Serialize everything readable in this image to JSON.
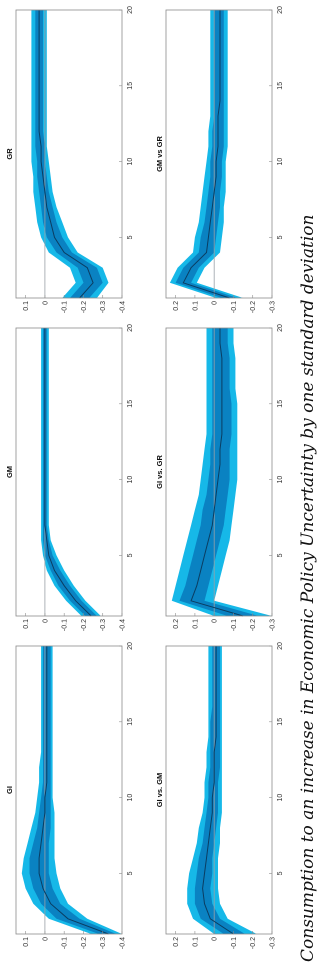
{
  "caption": "Consumption to an increase in Economic Policy Uncertainty by one standard deviation",
  "colors": {
    "outer_band": "#16b8e8",
    "inner_band": "#0a82c2",
    "median": "#0a3d62",
    "zero_line": "#9aa0a6",
    "frame": "#8c8c8c"
  },
  "chart_data": [
    {
      "type": "area",
      "title": "GI",
      "x": [
        1,
        2,
        3,
        4,
        5,
        6,
        7,
        8,
        9,
        10,
        11,
        12,
        13,
        14,
        15,
        16,
        17,
        18,
        19,
        20
      ],
      "series_median": [
        -0.33,
        -0.12,
        -0.03,
        0.01,
        0.03,
        0.03,
        0.02,
        0.01,
        0,
        0,
        -0.01,
        -0.01,
        -0.01,
        -0.01,
        -0.01,
        -0.01,
        -0.01,
        -0.01,
        -0.01,
        -0.01
      ],
      "band68_lower": [
        -0.37,
        -0.18,
        -0.08,
        -0.04,
        -0.02,
        -0.02,
        -0.02,
        -0.03,
        -0.03,
        -0.03,
        -0.03,
        -0.03,
        -0.03,
        -0.03,
        -0.03,
        -0.03,
        -0.03,
        -0.03,
        -0.03,
        -0.03
      ],
      "band68_upper": [
        -0.28,
        -0.06,
        0.02,
        0.06,
        0.08,
        0.08,
        0.06,
        0.04,
        0.03,
        0.02,
        0.01,
        0.01,
        0.01,
        0.01,
        0.01,
        0.01,
        0.01,
        0.01,
        0.01,
        0.01
      ],
      "band90_lower": [
        -0.4,
        -0.22,
        -0.12,
        -0.08,
        -0.06,
        -0.05,
        -0.05,
        -0.05,
        -0.05,
        -0.04,
        -0.04,
        -0.04,
        -0.04,
        -0.04,
        -0.04,
        -0.04,
        -0.04,
        -0.04,
        -0.04,
        -0.04
      ],
      "band90_upper": [
        -0.24,
        -0.02,
        0.06,
        0.1,
        0.12,
        0.11,
        0.09,
        0.07,
        0.05,
        0.04,
        0.03,
        0.03,
        0.02,
        0.02,
        0.02,
        0.02,
        0.02,
        0.02,
        0.02,
        0.02
      ],
      "xlim": [
        1,
        20
      ],
      "ylim": [
        -0.4,
        0.15
      ],
      "xticks": [
        5,
        10,
        15,
        20
      ],
      "xtick_labels": [
        "5",
        "10",
        "15",
        "20"
      ],
      "yticks": [
        -0.4,
        -0.3,
        -0.2,
        -0.1,
        0,
        0.1
      ],
      "ytick_labels": [
        "-0.4",
        "-0.3",
        "-0.2",
        "-0.1",
        "0",
        "0.1"
      ]
    },
    {
      "type": "area",
      "title": "GM",
      "x": [
        1,
        2,
        3,
        4,
        5,
        6,
        7,
        8,
        9,
        10,
        11,
        12,
        13,
        14,
        15,
        16,
        17,
        18,
        19,
        20
      ],
      "series_median": [
        -0.24,
        -0.16,
        -0.1,
        -0.05,
        -0.02,
        -0.01,
        0,
        0,
        0,
        0,
        0,
        0,
        0,
        0,
        0,
        0,
        0,
        0,
        0,
        0
      ],
      "band68_lower": [
        -0.27,
        -0.19,
        -0.13,
        -0.08,
        -0.04,
        -0.02,
        -0.01,
        -0.01,
        -0.01,
        -0.01,
        -0.01,
        -0.01,
        -0.01,
        -0.01,
        -0.01,
        -0.01,
        -0.01,
        -0.01,
        -0.01,
        -0.01
      ],
      "band68_upper": [
        -0.21,
        -0.13,
        -0.07,
        -0.03,
        0,
        0.01,
        0.01,
        0.01,
        0.01,
        0.01,
        0.01,
        0.01,
        0.01,
        0.01,
        0.01,
        0.01,
        0.01,
        0.01,
        0.01,
        0.01
      ],
      "band90_lower": [
        -0.29,
        -0.21,
        -0.15,
        -0.1,
        -0.06,
        -0.03,
        -0.02,
        -0.02,
        -0.02,
        -0.02,
        -0.02,
        -0.02,
        -0.02,
        -0.02,
        -0.02,
        -0.02,
        -0.02,
        -0.02,
        -0.02,
        -0.02
      ],
      "band90_upper": [
        -0.19,
        -0.11,
        -0.05,
        -0.01,
        0.01,
        0.02,
        0.02,
        0.02,
        0.02,
        0.02,
        0.02,
        0.02,
        0.02,
        0.02,
        0.02,
        0.02,
        0.02,
        0.02,
        0.02,
        0.02
      ],
      "xlim": [
        1,
        20
      ],
      "ylim": [
        -0.4,
        0.15
      ],
      "xticks": [
        5,
        10,
        15,
        20
      ],
      "xtick_labels": [
        "5",
        "10",
        "15",
        "20"
      ],
      "yticks": [
        -0.4,
        -0.3,
        -0.2,
        -0.1,
        0,
        0.1
      ],
      "ytick_labels": [
        "-0.4",
        "-0.3",
        "-0.2",
        "-0.1",
        "0",
        "0.1"
      ]
    },
    {
      "type": "area",
      "title": "GR",
      "x": [
        1,
        2,
        3,
        4,
        5,
        6,
        7,
        8,
        9,
        10,
        11,
        12,
        13,
        14,
        15,
        16,
        17,
        18,
        19,
        20
      ],
      "series_median": [
        -0.18,
        -0.25,
        -0.22,
        -0.1,
        -0.05,
        -0.03,
        -0.01,
        0,
        0.01,
        0.02,
        0.02,
        0.03,
        0.03,
        0.03,
        0.03,
        0.03,
        0.03,
        0.03,
        0.03,
        0.03
      ],
      "band68_lower": [
        -0.23,
        -0.3,
        -0.27,
        -0.14,
        -0.09,
        -0.06,
        -0.04,
        -0.02,
        -0.01,
        0,
        0,
        0.01,
        0.01,
        0.01,
        0.01,
        0.01,
        0.01,
        0.01,
        0.01,
        0.01
      ],
      "band68_upper": [
        -0.13,
        -0.2,
        -0.17,
        -0.06,
        -0.01,
        0.01,
        0.02,
        0.03,
        0.04,
        0.04,
        0.05,
        0.05,
        0.05,
        0.05,
        0.05,
        0.05,
        0.05,
        0.05,
        0.05,
        0.05
      ],
      "band90_lower": [
        -0.27,
        -0.33,
        -0.3,
        -0.17,
        -0.12,
        -0.09,
        -0.06,
        -0.04,
        -0.03,
        -0.02,
        -0.01,
        -0.01,
        -0.01,
        -0.01,
        -0.01,
        -0.01,
        -0.01,
        -0.01,
        -0.01,
        -0.01
      ],
      "band90_upper": [
        -0.09,
        -0.16,
        -0.13,
        -0.02,
        0.02,
        0.04,
        0.05,
        0.06,
        0.06,
        0.07,
        0.07,
        0.07,
        0.07,
        0.07,
        0.07,
        0.07,
        0.07,
        0.07,
        0.07,
        0.07
      ],
      "xlim": [
        1,
        20
      ],
      "ylim": [
        -0.4,
        0.15
      ],
      "xticks": [
        5,
        10,
        15,
        20
      ],
      "xtick_labels": [
        "5",
        "10",
        "15",
        "20"
      ],
      "yticks": [
        -0.4,
        -0.3,
        -0.2,
        -0.1,
        0,
        0.1
      ],
      "ytick_labels": [
        "-0.4",
        "-0.3",
        "-0.2",
        "-0.1",
        "0",
        "0.1"
      ]
    },
    {
      "type": "area",
      "title": "GI vs. GM",
      "x": [
        1,
        2,
        3,
        4,
        5,
        6,
        7,
        8,
        9,
        10,
        11,
        12,
        13,
        14,
        15,
        16,
        17,
        18,
        19,
        20
      ],
      "series_median": [
        -0.1,
        0.02,
        0.05,
        0.06,
        0.05,
        0.04,
        0.03,
        0.02,
        0.01,
        0.01,
        0,
        0,
        0,
        -0.01,
        -0.01,
        -0.01,
        -0.01,
        -0.01,
        -0.01,
        -0.01
      ],
      "band68_lower": [
        -0.16,
        -0.03,
        0.01,
        0.02,
        0.01,
        0.01,
        0,
        -0.01,
        -0.02,
        -0.02,
        -0.02,
        -0.03,
        -0.03,
        -0.03,
        -0.03,
        -0.03,
        -0.03,
        -0.03,
        -0.03,
        -0.03
      ],
      "band68_upper": [
        -0.05,
        0.07,
        0.1,
        0.1,
        0.09,
        0.08,
        0.06,
        0.05,
        0.04,
        0.03,
        0.03,
        0.02,
        0.02,
        0.02,
        0.02,
        0.01,
        0.01,
        0.01,
        0.01,
        0.01
      ],
      "band90_lower": [
        -0.22,
        -0.07,
        -0.03,
        -0.02,
        -0.02,
        -0.02,
        -0.03,
        -0.03,
        -0.04,
        -0.04,
        -0.04,
        -0.04,
        -0.04,
        -0.04,
        -0.04,
        -0.04,
        -0.04,
        -0.04,
        -0.04,
        -0.04
      ],
      "band90_upper": [
        0,
        0.11,
        0.14,
        0.14,
        0.13,
        0.11,
        0.09,
        0.08,
        0.06,
        0.05,
        0.05,
        0.04,
        0.04,
        0.03,
        0.03,
        0.03,
        0.03,
        0.03,
        0.03,
        0.03
      ],
      "xlim": [
        1,
        20
      ],
      "ylim": [
        -0.3,
        0.25
      ],
      "xticks": [
        5,
        10,
        15,
        20
      ],
      "xtick_labels": [
        "5",
        "10",
        "15",
        "20"
      ],
      "yticks": [
        -0.3,
        -0.2,
        -0.1,
        0,
        0.1,
        0.2
      ],
      "ytick_labels": [
        "-0.3",
        "-0.2",
        "-0.1",
        "0",
        "0.1",
        "0.2"
      ]
    },
    {
      "type": "area",
      "title": "GI vs. GR",
      "x": [
        1,
        2,
        3,
        4,
        5,
        6,
        7,
        8,
        9,
        10,
        11,
        12,
        13,
        14,
        15,
        16,
        17,
        18,
        19,
        20
      ],
      "series_median": [
        -0.15,
        0.12,
        0.09,
        0.07,
        0.05,
        0.03,
        0.01,
        0,
        -0.01,
        -0.02,
        -0.03,
        -0.03,
        -0.04,
        -0.04,
        -0.04,
        -0.04,
        -0.04,
        -0.04,
        -0.03,
        -0.03
      ],
      "band68_lower": [
        -0.23,
        0.05,
        0.03,
        0.01,
        -0.01,
        -0.03,
        -0.05,
        -0.06,
        -0.07,
        -0.08,
        -0.08,
        -0.08,
        -0.09,
        -0.09,
        -0.09,
        -0.08,
        -0.08,
        -0.08,
        -0.07,
        -0.07
      ],
      "band68_upper": [
        -0.07,
        0.18,
        0.15,
        0.13,
        0.11,
        0.09,
        0.07,
        0.06,
        0.04,
        0.03,
        0.02,
        0.02,
        0.01,
        0.01,
        0.01,
        0.01,
        0.01,
        0.01,
        0.01,
        0.01
      ],
      "band90_lower": [
        -0.3,
        0,
        -0.02,
        -0.04,
        -0.06,
        -0.08,
        -0.09,
        -0.1,
        -0.11,
        -0.12,
        -0.12,
        -0.12,
        -0.12,
        -0.12,
        -0.12,
        -0.11,
        -0.11,
        -0.11,
        -0.1,
        -0.1
      ],
      "band90_upper": [
        0,
        0.22,
        0.2,
        0.18,
        0.16,
        0.14,
        0.12,
        0.1,
        0.08,
        0.07,
        0.06,
        0.05,
        0.04,
        0.04,
        0.04,
        0.04,
        0.04,
        0.04,
        0.04,
        0.04
      ],
      "xlim": [
        1,
        20
      ],
      "ylim": [
        -0.3,
        0.25
      ],
      "xticks": [
        5,
        10,
        15,
        20
      ],
      "xtick_labels": [
        "5",
        "10",
        "15",
        "20"
      ],
      "yticks": [
        -0.3,
        -0.2,
        -0.1,
        0,
        0.1,
        0.2
      ],
      "ytick_labels": [
        "-0.3",
        "-0.2",
        "-0.1",
        "0",
        "0.1",
        "0.2"
      ]
    },
    {
      "type": "area",
      "title": "GM vs GR",
      "x": [
        1,
        2,
        3,
        4,
        5,
        6,
        7,
        8,
        9,
        10,
        11,
        12,
        13,
        14,
        15,
        16,
        17,
        18,
        19,
        20
      ],
      "series_median": [
        -0.08,
        0.16,
        0.12,
        0.04,
        0.03,
        0.02,
        0.01,
        0,
        -0.01,
        -0.01,
        -0.02,
        -0.02,
        -0.02,
        -0.03,
        -0.03,
        -0.03,
        -0.03,
        -0.03,
        -0.03,
        -0.03
      ],
      "band68_lower": [
        -0.12,
        0.12,
        0.08,
        0,
        -0.01,
        -0.02,
        -0.03,
        -0.03,
        -0.04,
        -0.04,
        -0.05,
        -0.05,
        -0.05,
        -0.05,
        -0.05,
        -0.05,
        -0.05,
        -0.05,
        -0.05,
        -0.05
      ],
      "band68_upper": [
        -0.04,
        0.2,
        0.16,
        0.08,
        0.07,
        0.05,
        0.04,
        0.03,
        0.02,
        0.02,
        0.01,
        0.01,
        0,
        0,
        0,
        0,
        0,
        0,
        0,
        0
      ],
      "band90_lower": [
        -0.15,
        0.09,
        0.05,
        -0.03,
        -0.04,
        -0.05,
        -0.05,
        -0.06,
        -0.06,
        -0.06,
        -0.07,
        -0.07,
        -0.07,
        -0.07,
        -0.07,
        -0.07,
        -0.07,
        -0.07,
        -0.07,
        -0.07
      ],
      "band90_upper": [
        -0.01,
        0.23,
        0.19,
        0.11,
        0.1,
        0.08,
        0.07,
        0.06,
        0.05,
        0.04,
        0.03,
        0.03,
        0.02,
        0.02,
        0.02,
        0.02,
        0.02,
        0.02,
        0.02,
        0.02
      ],
      "xlim": [
        1,
        20
      ],
      "ylim": [
        -0.3,
        0.25
      ],
      "xticks": [
        5,
        10,
        15,
        20
      ],
      "xtick_labels": [
        "5",
        "10",
        "15",
        "20"
      ],
      "yticks": [
        -0.3,
        -0.2,
        -0.1,
        0,
        0.1,
        0.2
      ],
      "ytick_labels": [
        "-0.3",
        "-0.2",
        "-0.1",
        "0",
        "0.1",
        "0.2"
      ]
    }
  ]
}
